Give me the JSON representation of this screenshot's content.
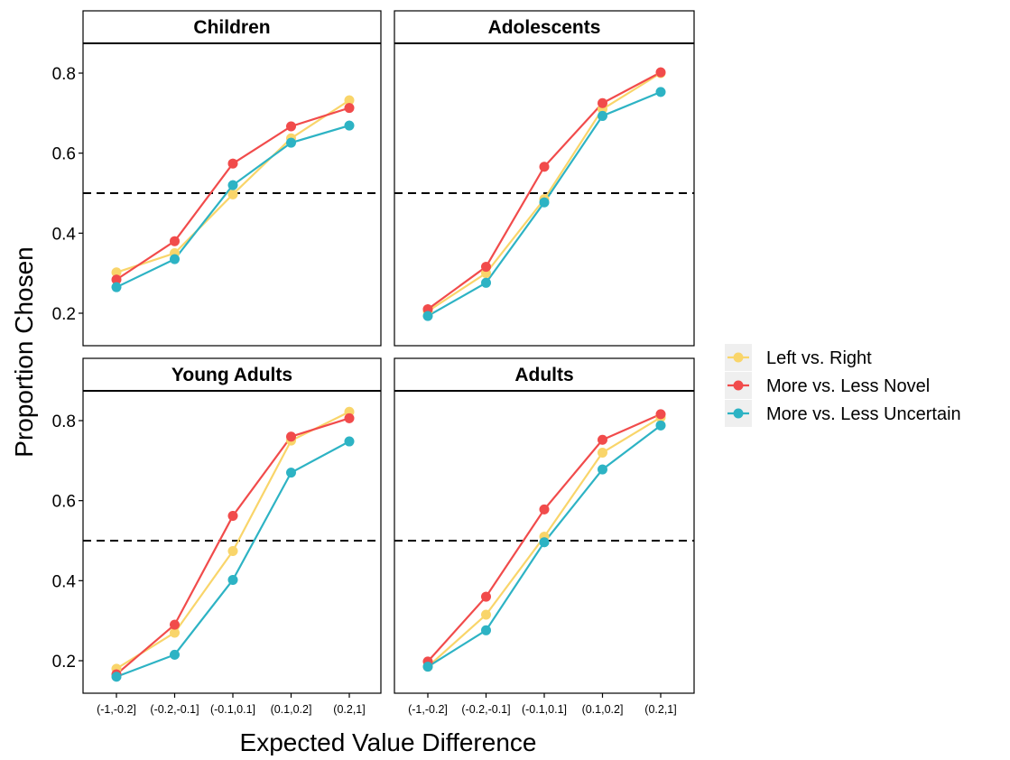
{
  "chart_data": {
    "type": "line",
    "xlabel": "Expected Value Difference",
    "ylabel": "Proportion Chosen",
    "categories": [
      "(-1,-0.2]",
      "(-0.2,-0.1]",
      "(-0.1,0.1]",
      "(0.1,0.2]",
      "(0.2,1]"
    ],
    "ylim": [
      0.15,
      0.87
    ],
    "yticks": [
      "0.2",
      "0.4",
      "0.6",
      "0.8"
    ],
    "reference_line": 0.5,
    "grid": false,
    "legend_position": "right",
    "legend": [
      "Left vs. Right",
      "More vs. Less Novel",
      "More vs. Less Uncertain"
    ],
    "colors": {
      "Left vs. Right": "#F9D56A",
      "More vs. Less Novel": "#F14B4B",
      "More vs. Less Uncertain": "#2DB3C4"
    },
    "panels": [
      {
        "title": "Children",
        "series": [
          {
            "name": "Left vs. Right",
            "values": [
              0.302,
              0.35,
              0.497,
              0.637,
              0.732
            ]
          },
          {
            "name": "More vs. Less Novel",
            "values": [
              0.284,
              0.38,
              0.574,
              0.667,
              0.713
            ]
          },
          {
            "name": "More vs. Less Uncertain",
            "values": [
              0.265,
              0.335,
              0.52,
              0.626,
              0.669
            ]
          }
        ]
      },
      {
        "title": "Adolescents",
        "series": [
          {
            "name": "Left vs. Right",
            "values": [
              0.205,
              0.3,
              0.485,
              0.71,
              0.8
            ]
          },
          {
            "name": "More vs. Less Novel",
            "values": [
              0.21,
              0.316,
              0.566,
              0.725,
              0.802
            ]
          },
          {
            "name": "More vs. Less Uncertain",
            "values": [
              0.193,
              0.276,
              0.477,
              0.693,
              0.753
            ]
          }
        ]
      },
      {
        "title": "Young Adults",
        "series": [
          {
            "name": "Left vs. Right",
            "values": [
              0.18,
              0.27,
              0.474,
              0.75,
              0.822
            ]
          },
          {
            "name": "More vs. Less Novel",
            "values": [
              0.166,
              0.29,
              0.562,
              0.76,
              0.806
            ]
          },
          {
            "name": "More vs. Less Uncertain",
            "values": [
              0.16,
              0.215,
              0.402,
              0.67,
              0.748
            ]
          }
        ]
      },
      {
        "title": "Adults",
        "series": [
          {
            "name": "Left vs. Right",
            "values": [
              0.185,
              0.315,
              0.51,
              0.72,
              0.808
            ]
          },
          {
            "name": "More vs. Less Novel",
            "values": [
              0.198,
              0.36,
              0.578,
              0.752,
              0.816
            ]
          },
          {
            "name": "More vs. Less Uncertain",
            "values": [
              0.185,
              0.276,
              0.496,
              0.678,
              0.788
            ]
          }
        ]
      }
    ]
  }
}
